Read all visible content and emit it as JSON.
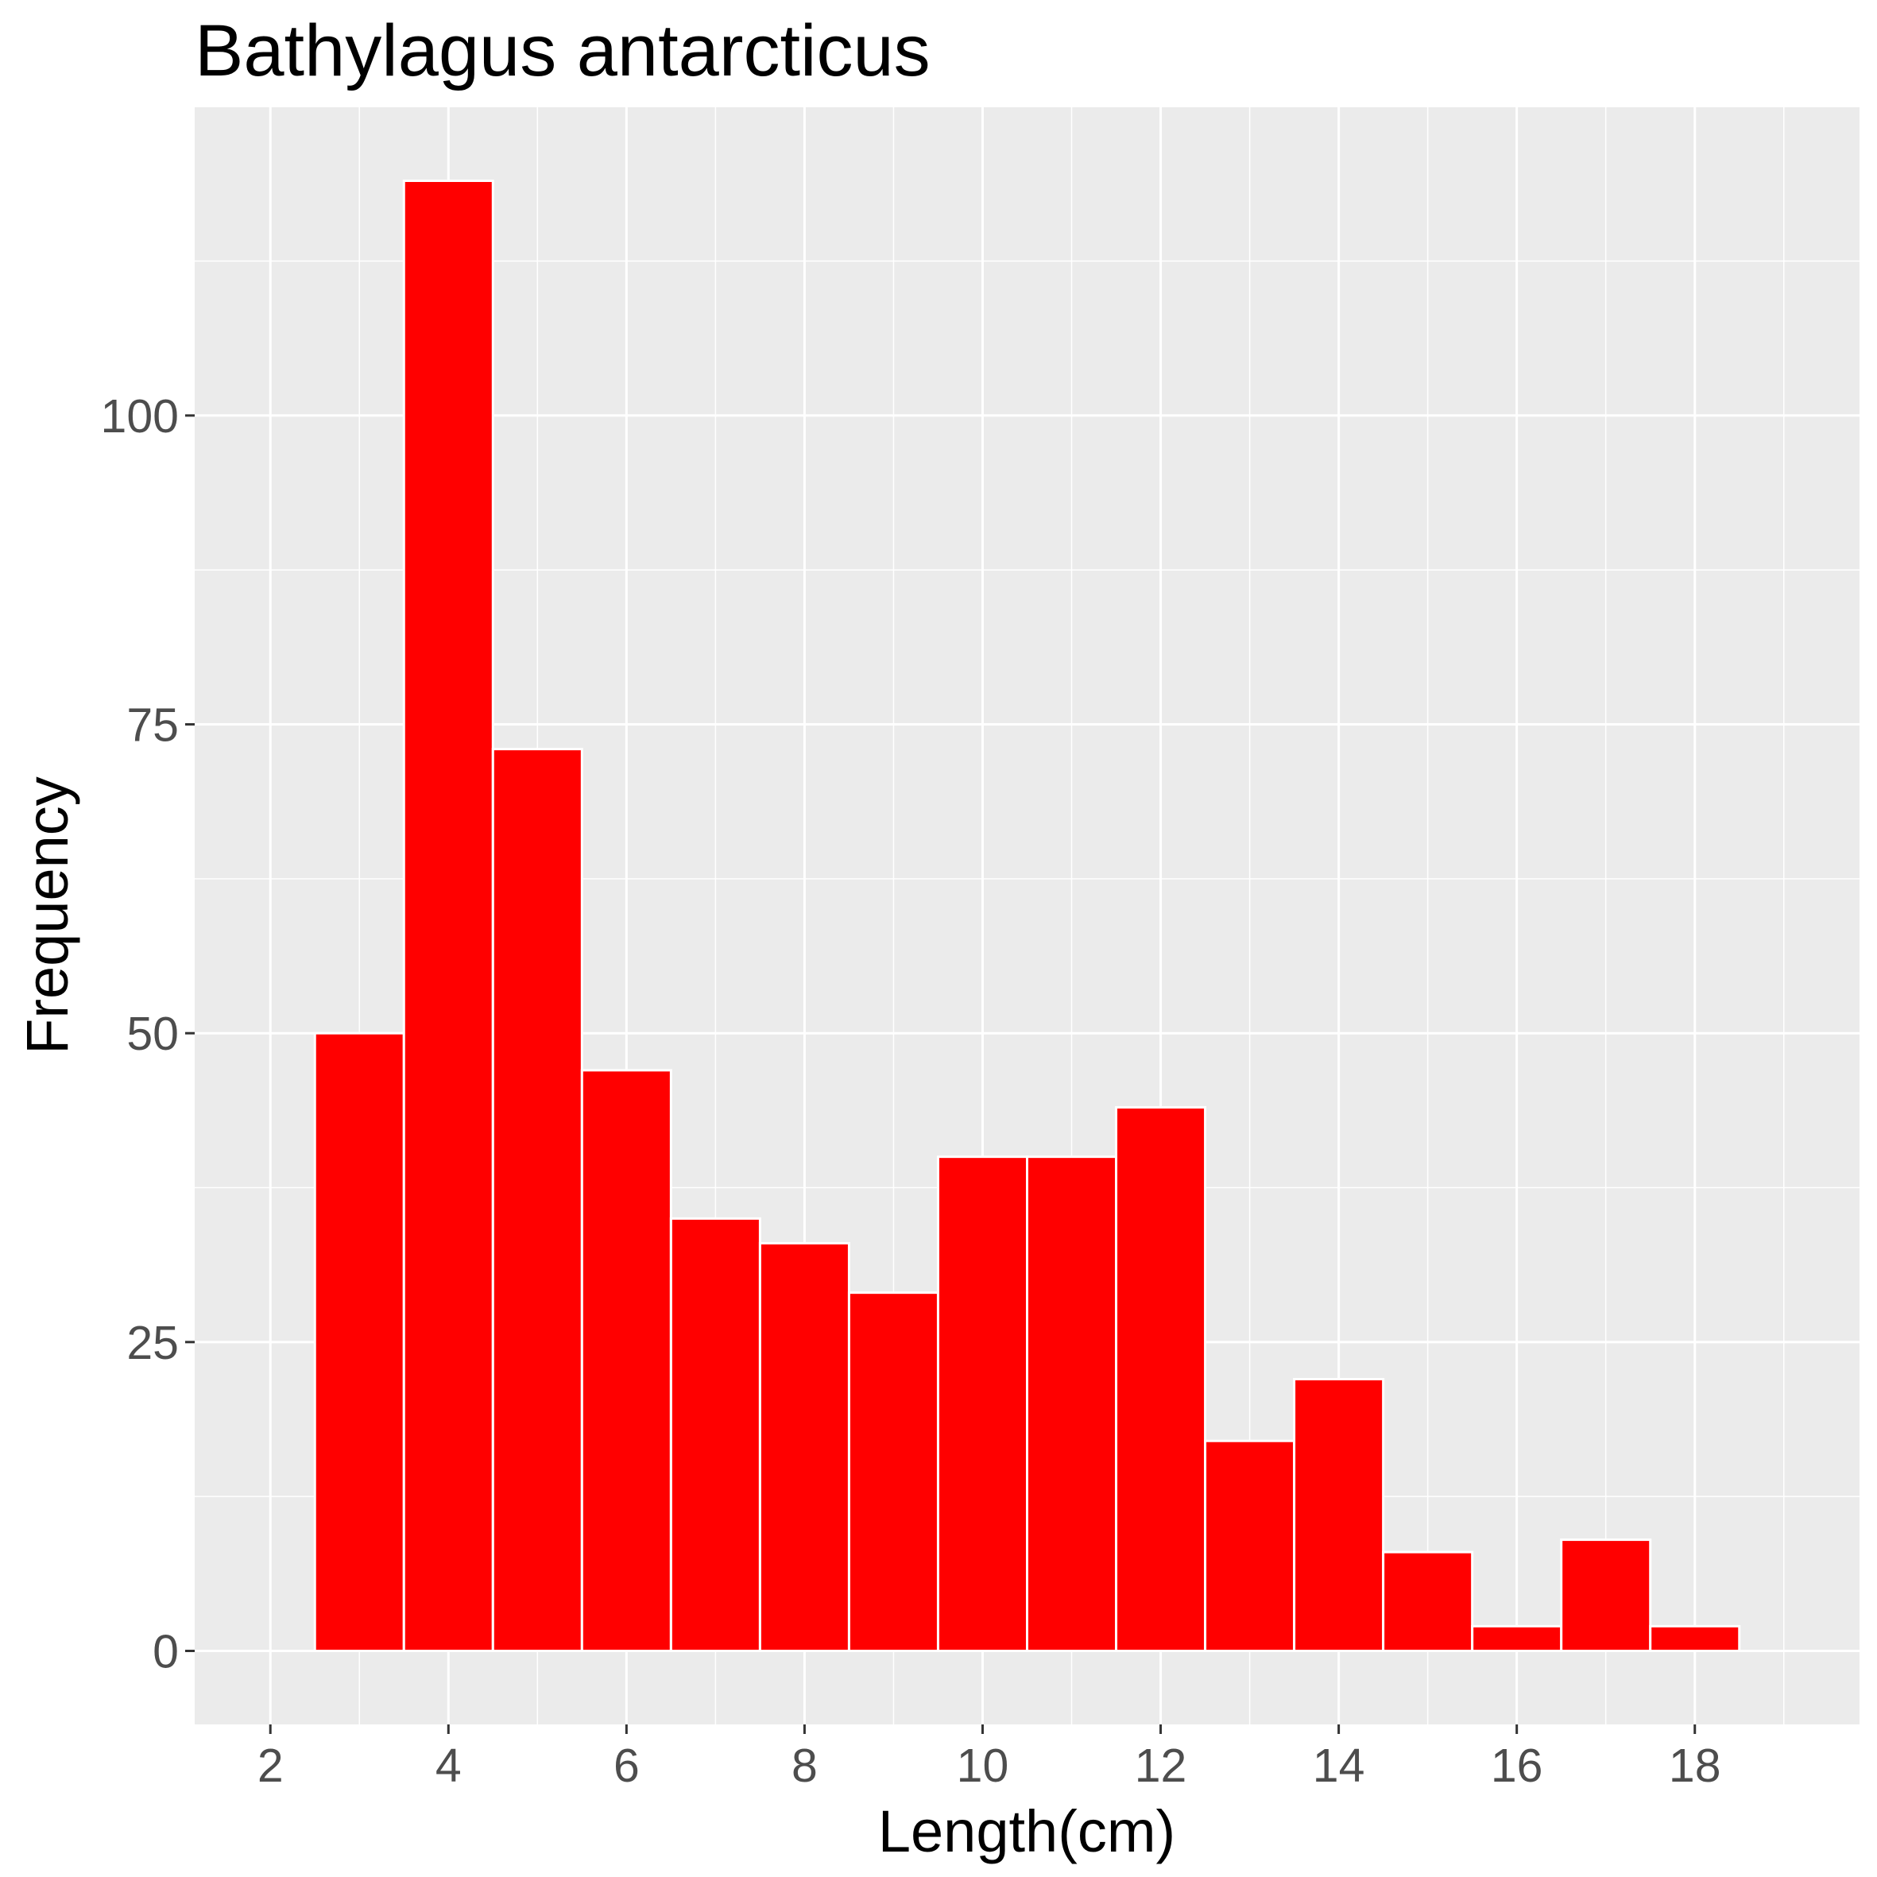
{
  "chart_data": {
    "type": "bar",
    "title": "Bathylagus antarcticus",
    "xlabel": "Length(cm)",
    "ylabel": "Frequency",
    "bin_width": 1,
    "bins": [
      {
        "x": 3,
        "value": 50
      },
      {
        "x": 4,
        "value": 119
      },
      {
        "x": 5,
        "value": 73
      },
      {
        "x": 6,
        "value": 47
      },
      {
        "x": 7,
        "value": 35
      },
      {
        "x": 8,
        "value": 33
      },
      {
        "x": 9,
        "value": 29
      },
      {
        "x": 10,
        "value": 40
      },
      {
        "x": 11,
        "value": 40
      },
      {
        "x": 12,
        "value": 44
      },
      {
        "x": 13,
        "value": 17
      },
      {
        "x": 14,
        "value": 22
      },
      {
        "x": 15,
        "value": 8
      },
      {
        "x": 16,
        "value": 2
      },
      {
        "x": 17,
        "value": 9
      },
      {
        "x": 18,
        "value": 2
      }
    ],
    "x_ticks": [
      2,
      4,
      6,
      8,
      10,
      12,
      14,
      16,
      18
    ],
    "y_ticks": [
      0,
      25,
      50,
      75,
      100
    ],
    "xlim": [
      1.15,
      19.85
    ],
    "ylim": [
      -5.95,
      124.95
    ],
    "grid": true,
    "colors": {
      "bar_fill": "#ff0000",
      "bar_outline": "#ffffff",
      "panel_background": "#ebebeb",
      "grid_line": "#ffffff",
      "tick_text": "#4d4d4d"
    }
  }
}
